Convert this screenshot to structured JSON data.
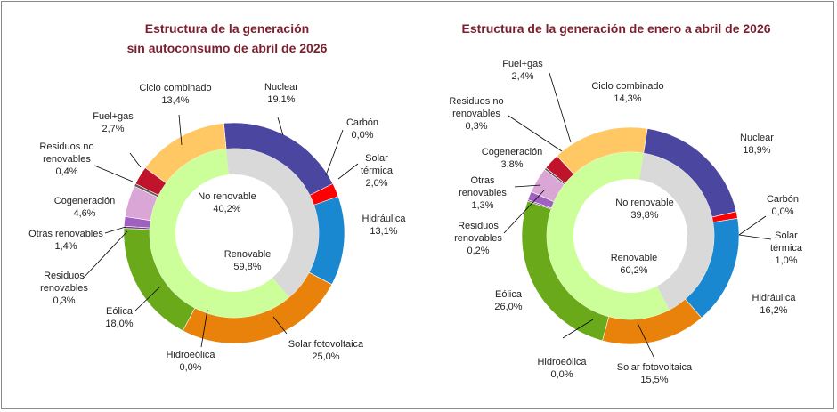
{
  "colors": {
    "title": "#7b1f2e",
    "nuclear": "#4b46a0",
    "carbon": "#404040",
    "solar_termica": "#ff0000",
    "hidraulica": "#1a87d1",
    "solar_fotovoltaica": "#e8820a",
    "hidroeolica": "#1f7a3a",
    "eolica": "#6aaa1a",
    "residuos_renovables": "#7a3a8a",
    "otras_renovables": "#a060c0",
    "cogeneracion": "#d9a6d6",
    "residuos_no_renovables": "#5a5a5a",
    "fuel_gas": "#c0142c",
    "ciclo_combinado": "#ffc864",
    "no_renovable": "#d9d9d9",
    "renovable": "#ccff99"
  },
  "chart_data": [
    {
      "type": "pie",
      "title": [
        "Estructura de la generación",
        "sin autoconsumo de abril de 2026"
      ],
      "slices": [
        {
          "name": "Nuclear",
          "value": 19.1,
          "label": "19,1%",
          "color_key": "nuclear"
        },
        {
          "name": "Carbón",
          "value": 0.0,
          "label": "0,0%",
          "color_key": "carbon"
        },
        {
          "name": "Solar térmica",
          "value": 2.0,
          "label": "2,0%",
          "color_key": "solar_termica"
        },
        {
          "name": "Hidráulica",
          "value": 13.1,
          "label": "13,1%",
          "color_key": "hidraulica"
        },
        {
          "name": "Solar fotovoltaica",
          "value": 25.0,
          "label": "25,0%",
          "color_key": "solar_fotovoltaica"
        },
        {
          "name": "Hidroeólica",
          "value": 0.0,
          "label": "0,0%",
          "color_key": "hidroeolica"
        },
        {
          "name": "Eólica",
          "value": 18.0,
          "label": "18,0%",
          "color_key": "eolica"
        },
        {
          "name": "Residuos renovables",
          "value": 0.3,
          "label": "0,3%",
          "color_key": "residuos_renovables"
        },
        {
          "name": "Otras renovables",
          "value": 1.4,
          "label": "1,4%",
          "color_key": "otras_renovables"
        },
        {
          "name": "Cogeneración",
          "value": 4.6,
          "label": "4,6%",
          "color_key": "cogeneracion"
        },
        {
          "name": "Residuos no renovables",
          "value": 0.4,
          "label": "0,4%",
          "color_key": "residuos_no_renovables"
        },
        {
          "name": "Fuel+gas",
          "value": 2.7,
          "label": "2,7%",
          "color_key": "fuel_gas"
        },
        {
          "name": "Ciclo combinado",
          "value": 13.4,
          "label": "13,4%",
          "color_key": "ciclo_combinado"
        }
      ],
      "inner": [
        {
          "name": "No renovable",
          "value": 40.2,
          "label": "40,2%",
          "color_key": "no_renovable"
        },
        {
          "name": "Renovable",
          "value": 59.8,
          "label": "59,8%",
          "color_key": "renovable"
        }
      ]
    },
    {
      "type": "pie",
      "title": [
        "Estructura de la generación de enero a abril de 2026"
      ],
      "slices": [
        {
          "name": "Nuclear",
          "value": 18.9,
          "label": "18,9%",
          "color_key": "nuclear"
        },
        {
          "name": "Carbón",
          "value": 0.0,
          "label": "0,0%",
          "color_key": "carbon"
        },
        {
          "name": "Solar térmica",
          "value": 1.0,
          "label": "1,0%",
          "color_key": "solar_termica"
        },
        {
          "name": "Hidráulica",
          "value": 16.2,
          "label": "16,2%",
          "color_key": "hidraulica"
        },
        {
          "name": "Solar fotovoltaica",
          "value": 15.5,
          "label": "15,5%",
          "color_key": "solar_fotovoltaica"
        },
        {
          "name": "Hidroeólica",
          "value": 0.0,
          "label": "0,0%",
          "color_key": "hidroeolica"
        },
        {
          "name": "Eólica",
          "value": 26.0,
          "label": "26,0%",
          "color_key": "eolica"
        },
        {
          "name": "Residuos renovables",
          "value": 0.2,
          "label": "0,2%",
          "color_key": "residuos_renovables"
        },
        {
          "name": "Otras renovables",
          "value": 1.3,
          "label": "1,3%",
          "color_key": "otras_renovables"
        },
        {
          "name": "Cogeneración",
          "value": 3.8,
          "label": "3,8%",
          "color_key": "cogeneracion"
        },
        {
          "name": "Residuos no renovables",
          "value": 0.3,
          "label": "0,3%",
          "color_key": "residuos_no_renovables"
        },
        {
          "name": "Fuel+gas",
          "value": 2.4,
          "label": "2,4%",
          "color_key": "fuel_gas"
        },
        {
          "name": "Ciclo combinado",
          "value": 14.3,
          "label": "14,3%",
          "color_key": "ciclo_combinado"
        }
      ],
      "inner": [
        {
          "name": "No renovable",
          "value": 39.8,
          "label": "39,8%",
          "color_key": "no_renovable"
        },
        {
          "name": "Renovable",
          "value": 60.2,
          "label": "60,2%",
          "color_key": "renovable"
        }
      ]
    }
  ]
}
